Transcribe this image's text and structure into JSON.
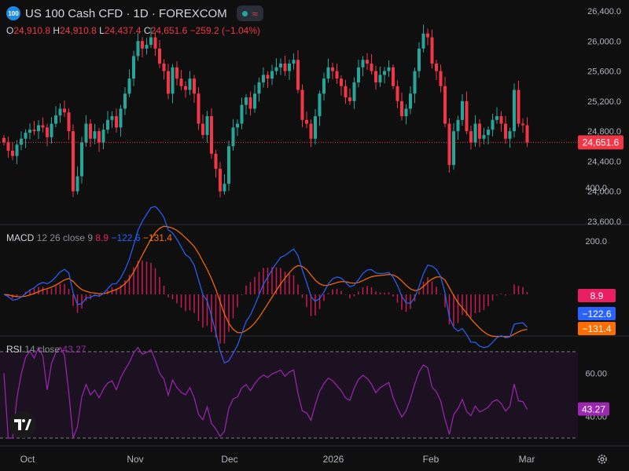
{
  "header": {
    "symbol_badge": "100",
    "title": "US 100 Cash CFD · 1D · FOREXCOM",
    "ohlc": [
      {
        "k": "O",
        "v": "24,910.8"
      },
      {
        "k": "H",
        "v": "24,910.8"
      },
      {
        "k": "L",
        "v": "24,437.4"
      },
      {
        "k": "C",
        "v": "24,651.6"
      }
    ],
    "change": "−259.2 (−1.04%)"
  },
  "price_axis": {
    "ticks": [
      "26,400.0",
      "26,000.0",
      "25,600.0",
      "25,200.0",
      "24,800.0",
      "24,400.0",
      "24,000.0",
      "23,600.0"
    ],
    "last_price_label": "24,651.6",
    "last_price": 24651.6
  },
  "macd": {
    "title": "MACD",
    "params": "12 26 close 9",
    "hist_value": "8.9",
    "macd_value": "−122.6",
    "signal_value": "−131.4",
    "ticks": [
      "400.0",
      "200.0"
    ],
    "hist_label": "8.9",
    "macd_label": "−122.6",
    "signal_label": "−131.4"
  },
  "rsi": {
    "title": "RSI",
    "params": "14 close",
    "value": "43.27",
    "ticks": [
      "60.00",
      "40.00"
    ],
    "value_label": "43.27"
  },
  "time_axis": [
    "Oct",
    "Nov",
    "Dec",
    "2026",
    "Feb",
    "Mar"
  ],
  "colors": {
    "up": "#26a69a",
    "down": "#f23645",
    "macd": "#2962ff",
    "signal": "#ff6d00",
    "rsi": "#9c27b0",
    "hist_pos": "#e91e63"
  },
  "chart_data": {
    "type": "candlestick",
    "price_range": [
      23600,
      26400
    ],
    "candles_note": "daily US100 approximated",
    "closes": [
      24650,
      24540,
      24470,
      24620,
      24700,
      24780,
      24820,
      24800,
      24880,
      24850,
      24720,
      24900,
      25010,
      25100,
      25050,
      24800,
      24000,
      24200,
      24650,
      24900,
      24700,
      24800,
      24650,
      24820,
      24950,
      25000,
      24850,
      25100,
      25300,
      25500,
      25800,
      26000,
      25900,
      25950,
      26050,
      25900,
      25700,
      25600,
      25300,
      25650,
      25500,
      25400,
      25350,
      25500,
      25300,
      24900,
      24750,
      25000,
      24500,
      24300,
      24000,
      24100,
      24600,
      24850,
      24900,
      25150,
      25250,
      25100,
      25300,
      25450,
      25550,
      25500,
      25600,
      25650,
      25700,
      25600,
      25700,
      25750,
      25350,
      24950,
      24900,
      24700,
      25000,
      25300,
      25500,
      25650,
      25600,
      25500,
      25400,
      25250,
      25200,
      25450,
      25650,
      25750,
      25700,
      25600,
      25450,
      25550,
      25600,
      25650,
      25400,
      25200,
      25000,
      25100,
      25300,
      25600,
      25900,
      26100,
      26050,
      25700,
      25600,
      25400,
      24900,
      24350,
      24800,
      24950,
      25200,
      24800,
      24650,
      24900,
      24700,
      24750,
      24820,
      24950,
      25000,
      24900,
      24700,
      24800,
      25350,
      24900,
      24880,
      24651.6
    ]
  }
}
